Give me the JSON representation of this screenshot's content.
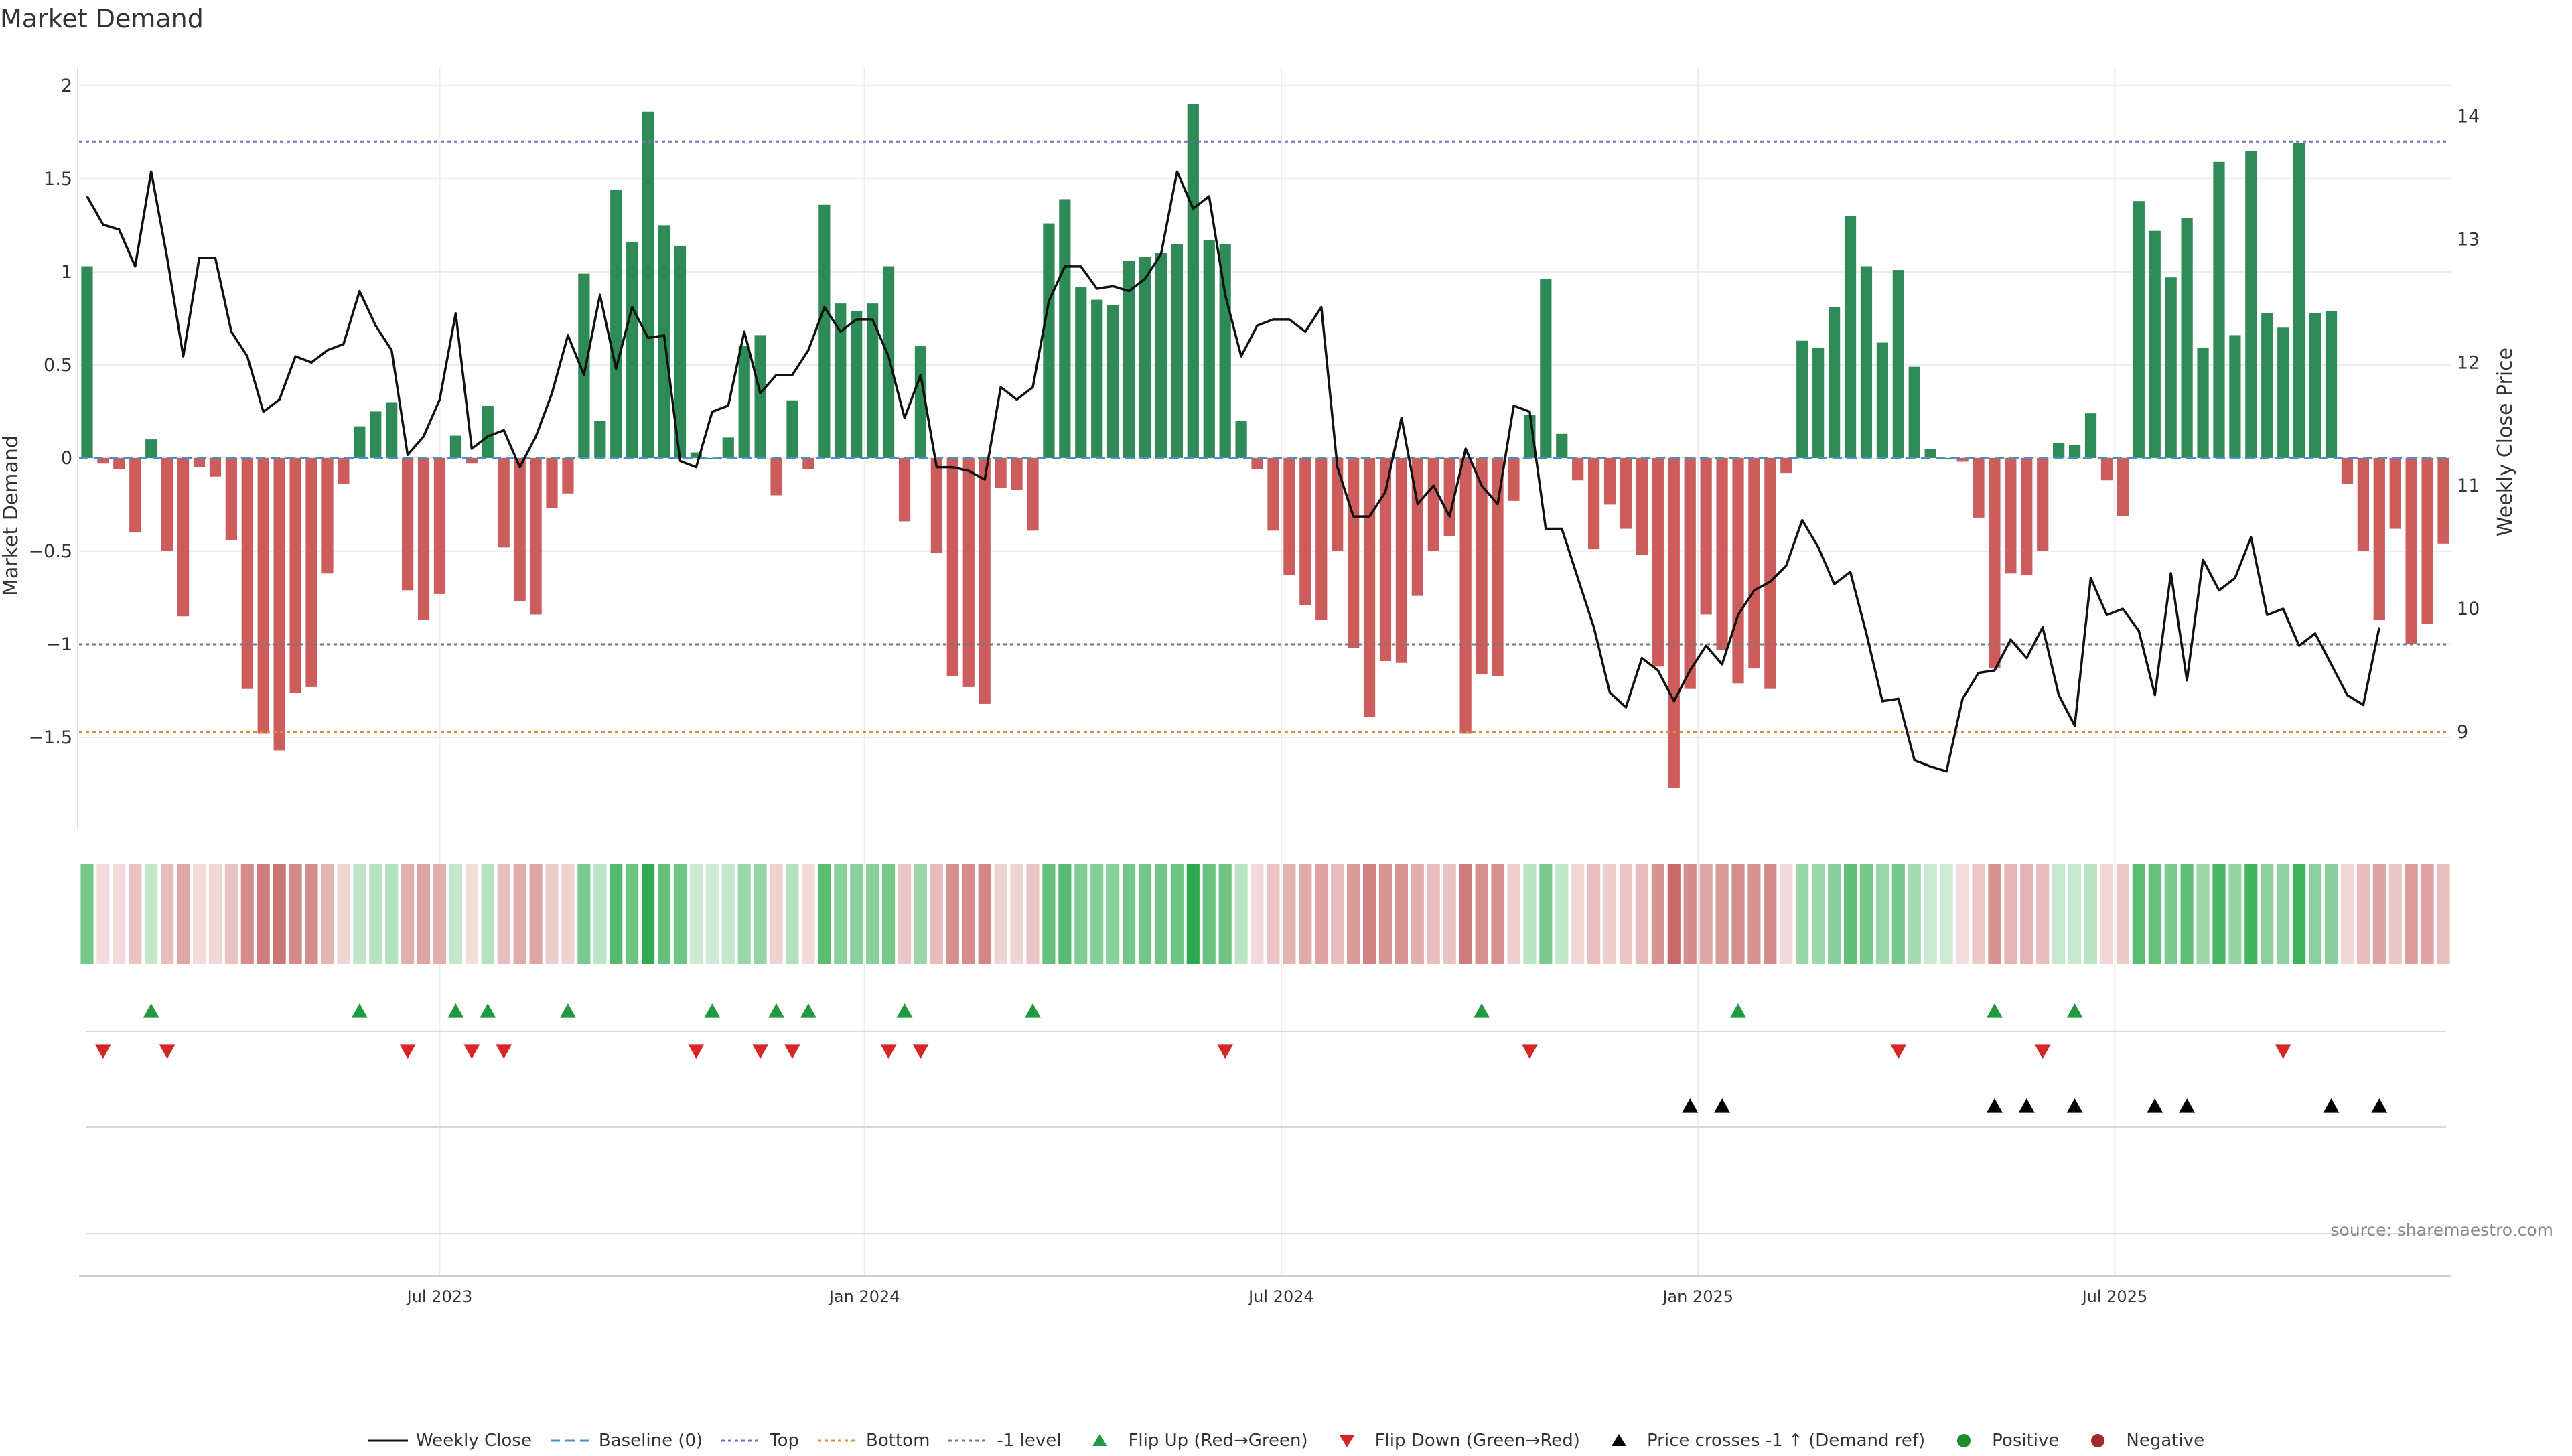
{
  "title": "Market Demand",
  "source": "source: sharemaestro.com",
  "colors": {
    "positive_bar": "#2e8b57",
    "negative_bar": "#cd5c5c",
    "price_line": "#111111",
    "baseline": "#4a90c2",
    "top_line": "#7b6fb3",
    "bottom_line": "#e6883a",
    "minus1_line": "#777777",
    "flip_up": "#1f9a3f",
    "flip_down": "#d62728",
    "cross": "#000000"
  },
  "chart_data": {
    "type": "bar",
    "title": "Market Demand",
    "ylabel_left": "Market Demand",
    "ylabel_right": "Weekly Close Price",
    "ylim_left": [
      -2,
      2.1
    ],
    "ylim_right": [
      8.2,
      14.4
    ],
    "yticks_left": [
      2,
      1.5,
      1,
      0.5,
      0,
      -0.5,
      -1,
      -1.5
    ],
    "ytick_labels_left": [
      "2",
      "1.5",
      "1",
      "0.5",
      "0",
      "−0.5",
      "−1",
      "−1.5"
    ],
    "yticks_right": [
      14,
      13,
      12,
      11,
      10,
      9
    ],
    "ytick_labels_right": [
      "14",
      "13",
      "12",
      "11",
      "10",
      "9"
    ],
    "x_ticks": [
      {
        "week": 22,
        "label": "Jul 2023"
      },
      {
        "week": 48.5,
        "label": "Jan 2024"
      },
      {
        "week": 74.5,
        "label": "Jul 2024"
      },
      {
        "week": 100.5,
        "label": "Jan 2025"
      },
      {
        "week": 126.5,
        "label": "Jul 2025"
      }
    ],
    "reference_lines": {
      "top": 1.7,
      "bottom": -1.47,
      "minus1": -1.0,
      "baseline": 0
    },
    "demand": [
      1.03,
      -0.03,
      -0.06,
      -0.4,
      0.1,
      -0.5,
      -0.85,
      -0.05,
      -0.1,
      -0.44,
      -1.24,
      -1.48,
      -1.57,
      -1.26,
      -1.23,
      -0.62,
      -0.14,
      0.17,
      0.25,
      0.3,
      -0.71,
      -0.87,
      -0.73,
      0.12,
      -0.03,
      0.28,
      -0.48,
      -0.77,
      -0.84,
      -0.27,
      -0.19,
      0.99,
      0.2,
      1.44,
      1.16,
      1.86,
      1.25,
      1.14,
      0.03,
      0.0,
      0.11,
      0.6,
      0.66,
      -0.2,
      0.31,
      -0.06,
      1.36,
      0.83,
      0.79,
      0.83,
      1.03,
      -0.34,
      0.6,
      -0.51,
      -1.17,
      -1.23,
      -1.32,
      -0.16,
      -0.17,
      -0.39,
      1.26,
      1.39,
      0.92,
      0.85,
      0.82,
      1.06,
      1.08,
      1.1,
      1.15,
      1.9,
      1.17,
      1.15,
      0.2,
      -0.06,
      -0.39,
      -0.63,
      -0.79,
      -0.87,
      -0.5,
      -1.02,
      -1.39,
      -1.09,
      -1.1,
      -0.74,
      -0.5,
      -0.42,
      -1.48,
      -1.16,
      -1.17,
      -0.23,
      0.23,
      0.96,
      0.13,
      -0.12,
      -0.49,
      -0.25,
      -0.38,
      -0.52,
      -1.12,
      -1.77,
      -1.24,
      -0.84,
      -1.03,
      -1.21,
      -1.13,
      -1.24,
      -0.08,
      0.63,
      0.59,
      0.81,
      1.3,
      1.03,
      0.62,
      1.01,
      0.49,
      0.05,
      0.0,
      -0.02,
      -0.32,
      -1.13,
      -0.62,
      -0.63,
      -0.5,
      0.08,
      0.07,
      0.24,
      -0.12,
      -0.31,
      1.38,
      1.22,
      0.97,
      1.29,
      0.59,
      1.59,
      0.66,
      1.65,
      0.78,
      0.7,
      1.69,
      0.78,
      0.79,
      -0.14,
      -0.5,
      -0.87,
      -0.38,
      -1.0,
      -0.89,
      -0.46
    ],
    "price": [
      13.35,
      13.12,
      13.08,
      12.78,
      13.55,
      12.85,
      12.05,
      12.85,
      12.85,
      12.25,
      12.05,
      11.6,
      11.7,
      12.05,
      12.0,
      12.1,
      12.15,
      12.58,
      12.3,
      12.1,
      11.25,
      11.4,
      11.7,
      12.4,
      11.3,
      11.4,
      11.45,
      11.15,
      11.4,
      11.75,
      12.22,
      11.9,
      12.55,
      11.95,
      12.45,
      12.2,
      12.22,
      11.2,
      11.15,
      11.6,
      11.65,
      12.25,
      11.75,
      11.9,
      11.9,
      12.1,
      12.45,
      12.25,
      12.35,
      12.35,
      12.05,
      11.55,
      11.9,
      11.15,
      11.15,
      11.12,
      11.05,
      11.8,
      11.7,
      11.8,
      12.5,
      12.78,
      12.78,
      12.6,
      12.62,
      12.58,
      12.68,
      12.88,
      13.55,
      13.25,
      13.35,
      12.55,
      12.05,
      12.3,
      12.35,
      12.35,
      12.25,
      12.45,
      11.15,
      10.75,
      10.75,
      10.95,
      11.55,
      10.85,
      11.0,
      10.75,
      11.3,
      11.0,
      10.85,
      11.65,
      11.6,
      10.65,
      10.65,
      10.25,
      9.85,
      9.32,
      9.2,
      9.6,
      9.5,
      9.25,
      9.5,
      9.7,
      9.55,
      9.95,
      10.15,
      10.22,
      10.35,
      10.72,
      10.5,
      10.2,
      10.3,
      9.8,
      9.25,
      9.27,
      8.77,
      8.72,
      8.68,
      9.27,
      9.48,
      9.5,
      9.75,
      9.6,
      9.85,
      9.3,
      9.05,
      10.25,
      9.95,
      10.0,
      9.82,
      9.3,
      10.29,
      9.42,
      10.4,
      10.15,
      10.25,
      10.58,
      9.95,
      10.0,
      9.7,
      9.8,
      9.55,
      9.3,
      9.22,
      9.85
    ],
    "flip_up_weeks": [
      4,
      17,
      23,
      25,
      30,
      39,
      43,
      45,
      51,
      59,
      87,
      103,
      119,
      124
    ],
    "flip_down_weeks": [
      1,
      5,
      20,
      24,
      26,
      38,
      42,
      44,
      50,
      52,
      71,
      90,
      113,
      122,
      137
    ],
    "price_cross_weeks": [
      100,
      102,
      119,
      121,
      124,
      129,
      131,
      140,
      143
    ],
    "legend": [
      {
        "key": "close",
        "label": "Weekly Close"
      },
      {
        "key": "baseline",
        "label": "Baseline (0)"
      },
      {
        "key": "top",
        "label": "Top"
      },
      {
        "key": "bottom",
        "label": "Bottom"
      },
      {
        "key": "minus1",
        "label": "-1 level"
      },
      {
        "key": "flip_up",
        "label": "Flip Up (Red→Green)"
      },
      {
        "key": "flip_down",
        "label": "Flip Down (Green→Red)"
      },
      {
        "key": "cross",
        "label": "Price crosses -1 ↑ (Demand ref)"
      },
      {
        "key": "positive",
        "label": "Positive"
      },
      {
        "key": "negative",
        "label": "Negative"
      }
    ]
  }
}
